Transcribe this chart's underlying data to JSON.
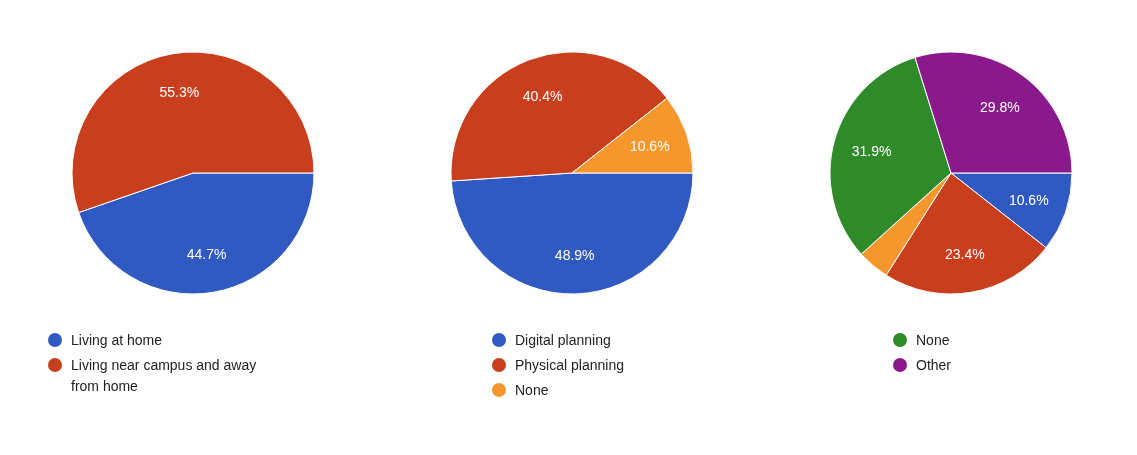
{
  "chart_data": [
    {
      "type": "pie",
      "categories": [
        "Living at home",
        "Living near campus and away from home"
      ],
      "values": [
        44.7,
        55.3
      ],
      "colors": [
        "#3059c2",
        "#c93f1d"
      ],
      "value_labels": [
        "44.7%",
        "55.3%"
      ],
      "legend": "bottom"
    },
    {
      "type": "pie",
      "categories": [
        "Digital planning",
        "Physical planning",
        "None"
      ],
      "values": [
        48.9,
        40.4,
        10.6
      ],
      "colors": [
        "#3059c2",
        "#c93f1d",
        "#f5972c"
      ],
      "value_labels": [
        "48.9%",
        "40.4%",
        "10.6%"
      ],
      "legend": "bottom"
    },
    {
      "type": "pie",
      "categories": [
        null,
        null,
        null,
        "None",
        "Other"
      ],
      "values": [
        10.6,
        23.4,
        4.3,
        31.9,
        29.8
      ],
      "colors": [
        "#3059c2",
        "#c93f1d",
        "#f5972c",
        "#2f8a2a",
        "#8a1a8c"
      ],
      "value_labels": [
        "10.6%",
        "23.4%",
        null,
        "31.9%",
        "29.8%"
      ],
      "legend": "bottom"
    }
  ]
}
